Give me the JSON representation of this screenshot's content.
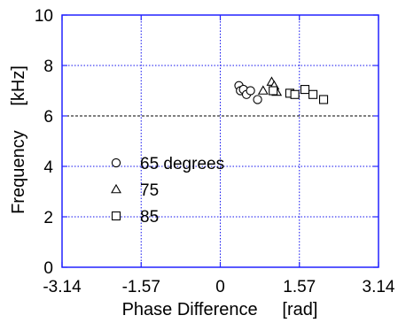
{
  "chart_data": {
    "type": "scatter",
    "title": "",
    "xlabel": "Phase Difference     [rad]",
    "ylabel": "Frequency     [kHz]",
    "xlim": [
      -3.14,
      3.14
    ],
    "ylim": [
      0,
      10
    ],
    "x_ticks": [
      -3.14,
      -1.57,
      0,
      1.57,
      3.14
    ],
    "x_tick_labels": [
      "-3.14",
      "-1.57",
      "0",
      "1.57",
      "3.14"
    ],
    "y_ticks": [
      0,
      2,
      4,
      6,
      8,
      10
    ],
    "y_tick_labels": [
      "0",
      "2",
      "4",
      "6",
      "8",
      "10"
    ],
    "grid": {
      "vertical_dotted_at": [
        -1.57,
        0,
        1.57
      ],
      "horizontal_dotted_at": [
        2,
        4,
        8
      ],
      "horizontal_dashed_at": [
        6
      ]
    },
    "legend_position": "left-middle",
    "series": [
      {
        "name": "65 degrees",
        "marker": "circle",
        "points": [
          {
            "x": 0.37,
            "y": 7.2
          },
          {
            "x": 0.4,
            "y": 7.0
          },
          {
            "x": 0.46,
            "y": 7.05
          },
          {
            "x": 0.52,
            "y": 6.85
          },
          {
            "x": 0.6,
            "y": 7.0
          },
          {
            "x": 0.74,
            "y": 6.65
          }
        ]
      },
      {
        "name": "75",
        "marker": "triangle",
        "points": [
          {
            "x": 0.85,
            "y": 7.0
          },
          {
            "x": 1.02,
            "y": 7.35
          },
          {
            "x": 1.07,
            "y": 7.2
          },
          {
            "x": 1.12,
            "y": 6.95
          }
        ]
      },
      {
        "name": "85",
        "marker": "square",
        "points": [
          {
            "x": 1.05,
            "y": 7.0
          },
          {
            "x": 1.38,
            "y": 6.9
          },
          {
            "x": 1.48,
            "y": 6.85
          },
          {
            "x": 1.68,
            "y": 7.05
          },
          {
            "x": 1.84,
            "y": 6.85
          },
          {
            "x": 2.05,
            "y": 6.65
          }
        ]
      }
    ]
  },
  "colors": {
    "axis": "#2222ff",
    "grid": "#1111ee",
    "dashed_line": "#000000",
    "marker_stroke": "#000000",
    "marker_fill": "#ffffff"
  }
}
